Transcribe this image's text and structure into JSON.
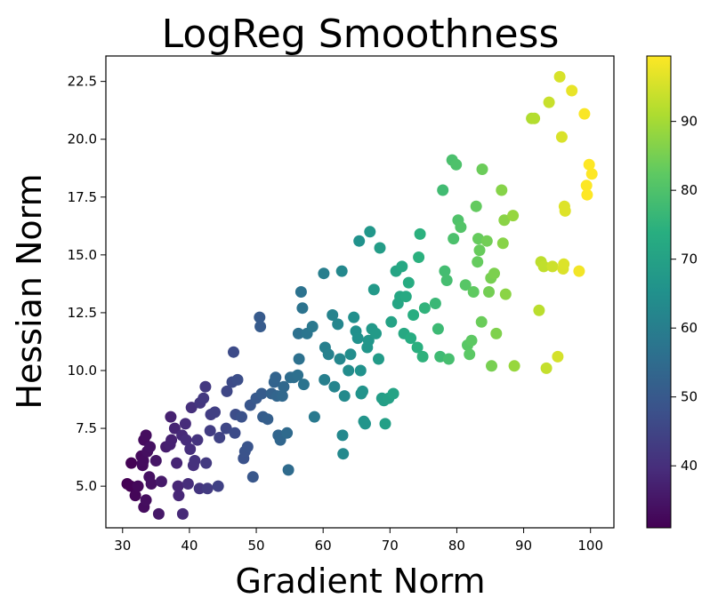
{
  "chart_data": {
    "type": "scatter",
    "title": "LogReg Smoothness",
    "xlabel": "Gradient Norm",
    "ylabel": "Hessian Norm",
    "xlim": [
      27.5,
      103.5
    ],
    "ylim": [
      3.2,
      23.6
    ],
    "xticks": [
      30,
      40,
      50,
      60,
      70,
      80,
      90,
      100
    ],
    "xtick_labels": [
      "30",
      "40",
      "50",
      "60",
      "70",
      "80",
      "90",
      "100"
    ],
    "yticks": [
      5.0,
      7.5,
      10.0,
      12.5,
      15.0,
      17.5,
      20.0,
      22.5
    ],
    "ytick_labels": [
      "5.0",
      "7.5",
      "10.0",
      "12.5",
      "15.0",
      "17.5",
      "20.0",
      "22.5"
    ],
    "grid": false,
    "colormap": "viridis",
    "colorbar": {
      "range": [
        31,
        99.5
      ],
      "ticks": [
        40,
        50,
        60,
        70,
        80,
        90
      ],
      "tick_labels": [
        "40",
        "50",
        "60",
        "70",
        "80",
        "90"
      ]
    },
    "color_source": "x",
    "points": [
      [
        30.7,
        5.1
      ],
      [
        31.2,
        5.0
      ],
      [
        31.3,
        6.0
      ],
      [
        31.9,
        4.6
      ],
      [
        32.3,
        5.0
      ],
      [
        32.8,
        6.3
      ],
      [
        33.0,
        6.0
      ],
      [
        33.0,
        5.9
      ],
      [
        33.1,
        6.1
      ],
      [
        33.2,
        7.0
      ],
      [
        33.5,
        7.2
      ],
      [
        33.7,
        6.5
      ],
      [
        33.2,
        4.1
      ],
      [
        33.5,
        4.4
      ],
      [
        34.0,
        5.4
      ],
      [
        34.3,
        5.1
      ],
      [
        34.1,
        6.7
      ],
      [
        35.0,
        6.1
      ],
      [
        35.4,
        3.8
      ],
      [
        35.8,
        5.2
      ],
      [
        36.5,
        6.7
      ],
      [
        37.1,
        6.8
      ],
      [
        37.3,
        7.0
      ],
      [
        37.2,
        8.0
      ],
      [
        37.8,
        7.5
      ],
      [
        38.1,
        6.0
      ],
      [
        38.4,
        4.6
      ],
      [
        38.3,
        5.0
      ],
      [
        38.9,
        7.2
      ],
      [
        39.4,
        7.7
      ],
      [
        39.5,
        7.0
      ],
      [
        39.0,
        3.8
      ],
      [
        39.8,
        5.1
      ],
      [
        40.1,
        6.6
      ],
      [
        40.3,
        8.4
      ],
      [
        40.6,
        5.9
      ],
      [
        40.8,
        6.1
      ],
      [
        41.2,
        7.0
      ],
      [
        41.5,
        4.9
      ],
      [
        41.6,
        8.6
      ],
      [
        42.1,
        8.8
      ],
      [
        42.4,
        9.3
      ],
      [
        42.5,
        6.0
      ],
      [
        42.7,
        4.9
      ],
      [
        43.1,
        7.4
      ],
      [
        43.2,
        8.1
      ],
      [
        43.8,
        8.2
      ],
      [
        44.3,
        5.0
      ],
      [
        44.5,
        7.1
      ],
      [
        45.5,
        7.5
      ],
      [
        45.6,
        9.1
      ],
      [
        46.4,
        9.5
      ],
      [
        46.6,
        10.8
      ],
      [
        46.8,
        7.3
      ],
      [
        46.9,
        8.1
      ],
      [
        47.2,
        9.6
      ],
      [
        47.8,
        8.0
      ],
      [
        48.1,
        6.2
      ],
      [
        48.3,
        6.5
      ],
      [
        48.7,
        6.7
      ],
      [
        49.1,
        8.5
      ],
      [
        49.5,
        5.4
      ],
      [
        50.0,
        8.8
      ],
      [
        50.5,
        12.3
      ],
      [
        50.6,
        11.9
      ],
      [
        50.8,
        9.0
      ],
      [
        51.0,
        8.0
      ],
      [
        51.7,
        7.9
      ],
      [
        52.3,
        9.0
      ],
      [
        52.7,
        9.5
      ],
      [
        52.9,
        9.7
      ],
      [
        53.1,
        8.9
      ],
      [
        53.3,
        7.2
      ],
      [
        53.6,
        7.0
      ],
      [
        53.9,
        8.9
      ],
      [
        54.1,
        9.3
      ],
      [
        54.6,
        7.3
      ],
      [
        54.8,
        5.7
      ],
      [
        55.1,
        9.7
      ],
      [
        55.6,
        9.7
      ],
      [
        56.2,
        9.8
      ],
      [
        56.3,
        11.6
      ],
      [
        56.4,
        10.5
      ],
      [
        56.7,
        13.4
      ],
      [
        56.9,
        12.7
      ],
      [
        57.1,
        9.4
      ],
      [
        57.6,
        11.6
      ],
      [
        58.4,
        11.9
      ],
      [
        58.7,
        8.0
      ],
      [
        60.1,
        14.2
      ],
      [
        60.2,
        9.6
      ],
      [
        60.3,
        11.0
      ],
      [
        60.8,
        10.7
      ],
      [
        61.4,
        12.4
      ],
      [
        61.7,
        9.3
      ],
      [
        62.2,
        12.0
      ],
      [
        62.5,
        10.5
      ],
      [
        62.8,
        14.3
      ],
      [
        62.9,
        7.2
      ],
      [
        63.0,
        6.4
      ],
      [
        63.2,
        8.9
      ],
      [
        63.8,
        10.0
      ],
      [
        64.1,
        10.7
      ],
      [
        64.6,
        12.3
      ],
      [
        64.9,
        11.7
      ],
      [
        65.2,
        11.4
      ],
      [
        65.4,
        15.6
      ],
      [
        65.6,
        10.0
      ],
      [
        65.7,
        9.0
      ],
      [
        65.9,
        9.1
      ],
      [
        66.1,
        7.8
      ],
      [
        66.3,
        7.7
      ],
      [
        66.6,
        11.0
      ],
      [
        66.8,
        11.3
      ],
      [
        67.0,
        16.0
      ],
      [
        67.3,
        11.8
      ],
      [
        67.6,
        13.5
      ],
      [
        67.9,
        11.6
      ],
      [
        68.3,
        10.5
      ],
      [
        68.5,
        15.3
      ],
      [
        68.8,
        8.8
      ],
      [
        69.1,
        8.7
      ],
      [
        69.3,
        7.7
      ],
      [
        69.8,
        8.8
      ],
      [
        70.2,
        12.1
      ],
      [
        70.5,
        9.0
      ],
      [
        70.9,
        14.3
      ],
      [
        71.2,
        12.9
      ],
      [
        71.5,
        13.2
      ],
      [
        71.8,
        14.5
      ],
      [
        72.1,
        11.6
      ],
      [
        72.4,
        13.2
      ],
      [
        72.8,
        13.8
      ],
      [
        73.1,
        11.4
      ],
      [
        73.5,
        12.4
      ],
      [
        74.1,
        11.0
      ],
      [
        74.3,
        14.9
      ],
      [
        74.5,
        15.9
      ],
      [
        74.9,
        10.6
      ],
      [
        75.2,
        12.7
      ],
      [
        76.8,
        12.9
      ],
      [
        77.2,
        11.8
      ],
      [
        77.5,
        10.6
      ],
      [
        77.9,
        17.8
      ],
      [
        78.2,
        14.3
      ],
      [
        78.5,
        13.9
      ],
      [
        78.8,
        10.5
      ],
      [
        79.3,
        19.1
      ],
      [
        79.5,
        15.7
      ],
      [
        79.9,
        18.9
      ],
      [
        80.2,
        16.5
      ],
      [
        80.6,
        16.2
      ],
      [
        81.3,
        13.7
      ],
      [
        81.6,
        11.1
      ],
      [
        81.9,
        10.7
      ],
      [
        82.2,
        11.3
      ],
      [
        82.5,
        13.4
      ],
      [
        82.9,
        17.1
      ],
      [
        83.2,
        15.7
      ],
      [
        83.1,
        14.7
      ],
      [
        83.4,
        15.2
      ],
      [
        83.7,
        12.1
      ],
      [
        83.8,
        18.7
      ],
      [
        84.5,
        15.6
      ],
      [
        84.8,
        13.4
      ],
      [
        85.1,
        14.0
      ],
      [
        85.2,
        10.2
      ],
      [
        85.6,
        14.2
      ],
      [
        85.9,
        11.6
      ],
      [
        86.7,
        17.8
      ],
      [
        86.9,
        15.5
      ],
      [
        87.1,
        16.5
      ],
      [
        87.3,
        13.3
      ],
      [
        88.4,
        16.7
      ],
      [
        88.6,
        10.2
      ],
      [
        91.2,
        20.9
      ],
      [
        91.6,
        20.9
      ],
      [
        92.3,
        12.6
      ],
      [
        92.6,
        14.7
      ],
      [
        93.0,
        14.5
      ],
      [
        93.4,
        10.1
      ],
      [
        93.8,
        21.6
      ],
      [
        94.3,
        14.5
      ],
      [
        95.1,
        10.6
      ],
      [
        95.4,
        22.7
      ],
      [
        95.7,
        20.1
      ],
      [
        95.9,
        14.4
      ],
      [
        96.0,
        14.6
      ],
      [
        96.1,
        17.1
      ],
      [
        96.2,
        16.9
      ],
      [
        97.2,
        22.1
      ],
      [
        98.3,
        14.3
      ],
      [
        99.1,
        21.1
      ],
      [
        99.4,
        18.0
      ],
      [
        99.5,
        17.6
      ],
      [
        99.8,
        18.9
      ],
      [
        100.2,
        18.5
      ]
    ]
  }
}
